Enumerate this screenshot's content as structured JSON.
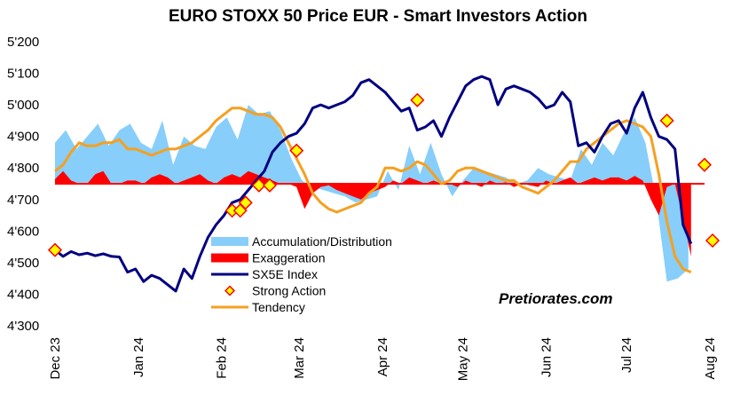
{
  "chart_data": {
    "type": "line",
    "title": "EURO STOXX 50 Price EUR - Smart Investors Action",
    "watermark": "Pretiorates.com",
    "ylim": [
      4300,
      5200
    ],
    "yticks": [
      "4'300",
      "4'400",
      "4'500",
      "4'600",
      "4'700",
      "4'800",
      "4'900",
      "5'000",
      "5'100",
      "5'200"
    ],
    "ytick_values": [
      4300,
      4400,
      4500,
      4600,
      4700,
      4800,
      4900,
      5000,
      5100,
      5200
    ],
    "xticks": [
      "Dec 23",
      "Jan 24",
      "Feb 24",
      "Mar 24",
      "Apr 24",
      "May 24",
      "Jun 24",
      "Jul 24",
      "Aug 24"
    ],
    "xtick_dates": [
      "2023-12-01",
      "2024-01-01",
      "2024-02-01",
      "2024-03-01",
      "2024-04-01",
      "2024-05-01",
      "2024-06-01",
      "2024-07-01",
      "2024-08-01"
    ],
    "x_range": [
      "2023-12-01",
      "2024-08-01"
    ],
    "baseline": 4750,
    "legend_placement": "lower-left",
    "colors": {
      "accumulation": "#87cefa",
      "exaggeration": "#ff0000",
      "index": "#000080",
      "strong_action_fill": "#ffff00",
      "strong_action_edge": "#ff0000",
      "tendency": "#f5a020"
    },
    "series": [
      {
        "name": "Accumulation/Distribution",
        "kind": "area",
        "x": [
          "2023-12-01",
          "2023-12-05",
          "2023-12-09",
          "2023-12-13",
          "2023-12-17",
          "2023-12-21",
          "2023-12-25",
          "2023-12-29",
          "2024-01-02",
          "2024-01-06",
          "2024-01-10",
          "2024-01-14",
          "2024-01-18",
          "2024-01-22",
          "2024-01-26",
          "2024-01-30",
          "2024-02-03",
          "2024-02-07",
          "2024-02-11",
          "2024-02-15",
          "2024-02-19",
          "2024-02-23",
          "2024-02-27",
          "2024-03-02",
          "2024-03-06",
          "2024-03-10",
          "2024-03-14",
          "2024-03-18",
          "2024-03-22",
          "2024-03-26",
          "2024-03-30",
          "2024-04-03",
          "2024-04-07",
          "2024-04-11",
          "2024-04-15",
          "2024-04-19",
          "2024-04-23",
          "2024-04-27",
          "2024-05-01",
          "2024-05-05",
          "2024-05-09",
          "2024-05-13",
          "2024-05-17",
          "2024-05-21",
          "2024-05-25",
          "2024-05-29",
          "2024-06-02",
          "2024-06-06",
          "2024-06-10",
          "2024-06-14",
          "2024-06-18",
          "2024-06-22",
          "2024-06-26",
          "2024-06-30",
          "2024-07-04",
          "2024-07-08",
          "2024-07-12",
          "2024-07-16",
          "2024-07-20",
          "2024-07-24"
        ],
        "values": [
          4880,
          4920,
          4860,
          4900,
          4940,
          4870,
          4920,
          4940,
          4880,
          4860,
          4950,
          4810,
          4900,
          4870,
          4860,
          4930,
          4960,
          4890,
          5000,
          4970,
          4980,
          4920,
          4830,
          4760,
          4740,
          4730,
          4720,
          4710,
          4690,
          4700,
          4710,
          4790,
          4730,
          4870,
          4780,
          4880,
          4780,
          4710,
          4760,
          4800,
          4790,
          4780,
          4770,
          4750,
          4760,
          4800,
          4780,
          4770,
          4760,
          4860,
          4810,
          4880,
          4840,
          4910,
          4960,
          4880,
          4700,
          4440,
          4450,
          4480
        ]
      },
      {
        "name": "Exaggeration",
        "kind": "area",
        "x": [
          "2023-12-01",
          "2023-12-04",
          "2023-12-07",
          "2023-12-10",
          "2023-12-13",
          "2023-12-16",
          "2023-12-19",
          "2023-12-22",
          "2023-12-25",
          "2023-12-28",
          "2023-12-31",
          "2024-01-03",
          "2024-01-06",
          "2024-01-09",
          "2024-01-12",
          "2024-01-15",
          "2024-01-18",
          "2024-01-21",
          "2024-01-24",
          "2024-01-27",
          "2024-01-30",
          "2024-02-02",
          "2024-02-05",
          "2024-02-08",
          "2024-02-11",
          "2024-02-14",
          "2024-02-17",
          "2024-02-20",
          "2024-02-23",
          "2024-02-26",
          "2024-02-29",
          "2024-03-03",
          "2024-03-06",
          "2024-03-09",
          "2024-03-12",
          "2024-03-15",
          "2024-03-18",
          "2024-03-21",
          "2024-03-24",
          "2024-03-27",
          "2024-03-30",
          "2024-04-02",
          "2024-04-05",
          "2024-04-08",
          "2024-04-11",
          "2024-04-14",
          "2024-04-17",
          "2024-04-20",
          "2024-04-23",
          "2024-04-26",
          "2024-04-29",
          "2024-05-02",
          "2024-05-05",
          "2024-05-08",
          "2024-05-11",
          "2024-05-14",
          "2024-05-17",
          "2024-05-20",
          "2024-05-23",
          "2024-05-26",
          "2024-05-29",
          "2024-06-01",
          "2024-06-04",
          "2024-06-07",
          "2024-06-10",
          "2024-06-13",
          "2024-06-16",
          "2024-06-19",
          "2024-06-22",
          "2024-06-25",
          "2024-06-28",
          "2024-07-01",
          "2024-07-04",
          "2024-07-07",
          "2024-07-10",
          "2024-07-13",
          "2024-07-16",
          "2024-07-19",
          "2024-07-22",
          "2024-07-25"
        ],
        "values": [
          4765,
          4790,
          4760,
          4750,
          4750,
          4780,
          4790,
          4750,
          4750,
          4760,
          4760,
          4750,
          4770,
          4780,
          4770,
          4750,
          4760,
          4770,
          4780,
          4760,
          4750,
          4770,
          4780,
          4770,
          4790,
          4780,
          4770,
          4760,
          4750,
          4750,
          4740,
          4670,
          4720,
          4740,
          4745,
          4730,
          4720,
          4710,
          4700,
          4720,
          4730,
          4740,
          4760,
          4750,
          4770,
          4760,
          4750,
          4760,
          4750,
          4750,
          4740,
          4760,
          4750,
          4740,
          4760,
          4750,
          4755,
          4740,
          4750,
          4745,
          4740,
          4760,
          4750,
          4760,
          4770,
          4750,
          4760,
          4770,
          4760,
          4770,
          4770,
          4760,
          4775,
          4760,
          4700,
          4650,
          4740,
          4750,
          4640,
          4520
        ]
      },
      {
        "name": "SX5E Index",
        "kind": "line",
        "x": [
          "2023-12-01",
          "2023-12-04",
          "2023-12-07",
          "2023-12-10",
          "2023-12-13",
          "2023-12-16",
          "2023-12-19",
          "2023-12-22",
          "2023-12-25",
          "2023-12-28",
          "2023-12-31",
          "2024-01-03",
          "2024-01-06",
          "2024-01-09",
          "2024-01-12",
          "2024-01-15",
          "2024-01-18",
          "2024-01-21",
          "2024-01-24",
          "2024-01-27",
          "2024-01-30",
          "2024-02-02",
          "2024-02-05",
          "2024-02-08",
          "2024-02-11",
          "2024-02-14",
          "2024-02-17",
          "2024-02-20",
          "2024-02-23",
          "2024-02-26",
          "2024-02-29",
          "2024-03-03",
          "2024-03-06",
          "2024-03-09",
          "2024-03-12",
          "2024-03-15",
          "2024-03-18",
          "2024-03-21",
          "2024-03-24",
          "2024-03-27",
          "2024-03-30",
          "2024-04-02",
          "2024-04-05",
          "2024-04-08",
          "2024-04-11",
          "2024-04-14",
          "2024-04-17",
          "2024-04-20",
          "2024-04-23",
          "2024-04-26",
          "2024-04-29",
          "2024-05-02",
          "2024-05-05",
          "2024-05-08",
          "2024-05-11",
          "2024-05-14",
          "2024-05-17",
          "2024-05-20",
          "2024-05-23",
          "2024-05-26",
          "2024-05-29",
          "2024-06-01",
          "2024-06-04",
          "2024-06-07",
          "2024-06-10",
          "2024-06-13",
          "2024-06-16",
          "2024-06-19",
          "2024-06-22",
          "2024-06-25",
          "2024-06-28",
          "2024-07-01",
          "2024-07-04",
          "2024-07-07",
          "2024-07-10",
          "2024-07-13",
          "2024-07-16",
          "2024-07-19",
          "2024-07-22",
          "2024-07-25"
        ],
        "values": [
          4540,
          4520,
          4535,
          4525,
          4530,
          4522,
          4528,
          4520,
          4518,
          4470,
          4480,
          4440,
          4460,
          4450,
          4430,
          4410,
          4480,
          4450,
          4520,
          4580,
          4620,
          4650,
          4690,
          4700,
          4730,
          4760,
          4790,
          4850,
          4880,
          4900,
          4910,
          4940,
          4990,
          5000,
          4990,
          5000,
          5010,
          5030,
          5070,
          5080,
          5060,
          5040,
          5010,
          4980,
          4990,
          4920,
          4930,
          4950,
          4900,
          4960,
          5010,
          5060,
          5080,
          5090,
          5080,
          5000,
          5050,
          5060,
          5050,
          5040,
          5020,
          4990,
          5000,
          5040,
          5010,
          4870,
          4880,
          4850,
          4900,
          4940,
          4950,
          4910,
          4990,
          5040,
          4960,
          4900,
          4890,
          4860,
          4620,
          4560
        ]
      },
      {
        "name": "Tendency",
        "kind": "line",
        "x": [
          "2023-12-01",
          "2023-12-04",
          "2023-12-07",
          "2023-12-10",
          "2023-12-13",
          "2023-12-16",
          "2023-12-19",
          "2023-12-22",
          "2023-12-25",
          "2023-12-28",
          "2023-12-31",
          "2024-01-03",
          "2024-01-06",
          "2024-01-09",
          "2024-01-12",
          "2024-01-15",
          "2024-01-18",
          "2024-01-21",
          "2024-01-24",
          "2024-01-27",
          "2024-01-30",
          "2024-02-02",
          "2024-02-05",
          "2024-02-08",
          "2024-02-11",
          "2024-02-14",
          "2024-02-17",
          "2024-02-20",
          "2024-02-23",
          "2024-02-26",
          "2024-02-29",
          "2024-03-03",
          "2024-03-06",
          "2024-03-09",
          "2024-03-12",
          "2024-03-15",
          "2024-03-18",
          "2024-03-21",
          "2024-03-24",
          "2024-03-27",
          "2024-03-30",
          "2024-04-02",
          "2024-04-05",
          "2024-04-08",
          "2024-04-11",
          "2024-04-14",
          "2024-04-17",
          "2024-04-20",
          "2024-04-23",
          "2024-04-26",
          "2024-04-29",
          "2024-05-02",
          "2024-05-05",
          "2024-05-08",
          "2024-05-11",
          "2024-05-14",
          "2024-05-17",
          "2024-05-20",
          "2024-05-23",
          "2024-05-26",
          "2024-05-29",
          "2024-06-01",
          "2024-06-04",
          "2024-06-07",
          "2024-06-10",
          "2024-06-13",
          "2024-06-16",
          "2024-06-19",
          "2024-06-22",
          "2024-06-25",
          "2024-06-28",
          "2024-07-01",
          "2024-07-04",
          "2024-07-07",
          "2024-07-10",
          "2024-07-13",
          "2024-07-16",
          "2024-07-19",
          "2024-07-22",
          "2024-07-25"
        ],
        "values": [
          4790,
          4810,
          4850,
          4880,
          4870,
          4870,
          4880,
          4880,
          4890,
          4860,
          4860,
          4850,
          4840,
          4850,
          4860,
          4860,
          4870,
          4880,
          4900,
          4920,
          4950,
          4970,
          4990,
          4990,
          4980,
          4970,
          4970,
          4960,
          4930,
          4880,
          4830,
          4780,
          4720,
          4690,
          4670,
          4660,
          4670,
          4680,
          4690,
          4720,
          4740,
          4800,
          4800,
          4790,
          4800,
          4820,
          4810,
          4780,
          4750,
          4760,
          4790,
          4800,
          4800,
          4790,
          4780,
          4770,
          4760,
          4760,
          4740,
          4730,
          4720,
          4740,
          4760,
          4790,
          4820,
          4820,
          4860,
          4880,
          4900,
          4920,
          4940,
          4950,
          4940,
          4930,
          4900,
          4780,
          4630,
          4520,
          4480,
          4470
        ]
      }
    ],
    "strong_action": {
      "name": "Strong Action",
      "kind": "markers",
      "x": [
        "2023-12-01",
        "2024-02-05",
        "2024-02-08",
        "2024-02-10",
        "2024-02-15",
        "2024-02-19",
        "2024-02-29",
        "2024-04-14",
        "2024-07-16",
        "2024-07-30",
        "2024-08-02"
      ],
      "values": [
        4540,
        4665,
        4665,
        4690,
        4745,
        4745,
        4855,
        5015,
        4950,
        4810,
        4570
      ]
    },
    "legend": [
      {
        "name": "Accumulation/Distribution",
        "symbol": "area"
      },
      {
        "name": "Exaggeration",
        "symbol": "bar"
      },
      {
        "name": "SX5E Index",
        "symbol": "line"
      },
      {
        "name": "Strong Action",
        "symbol": "diamond"
      },
      {
        "name": "Tendency",
        "symbol": "line"
      }
    ]
  }
}
